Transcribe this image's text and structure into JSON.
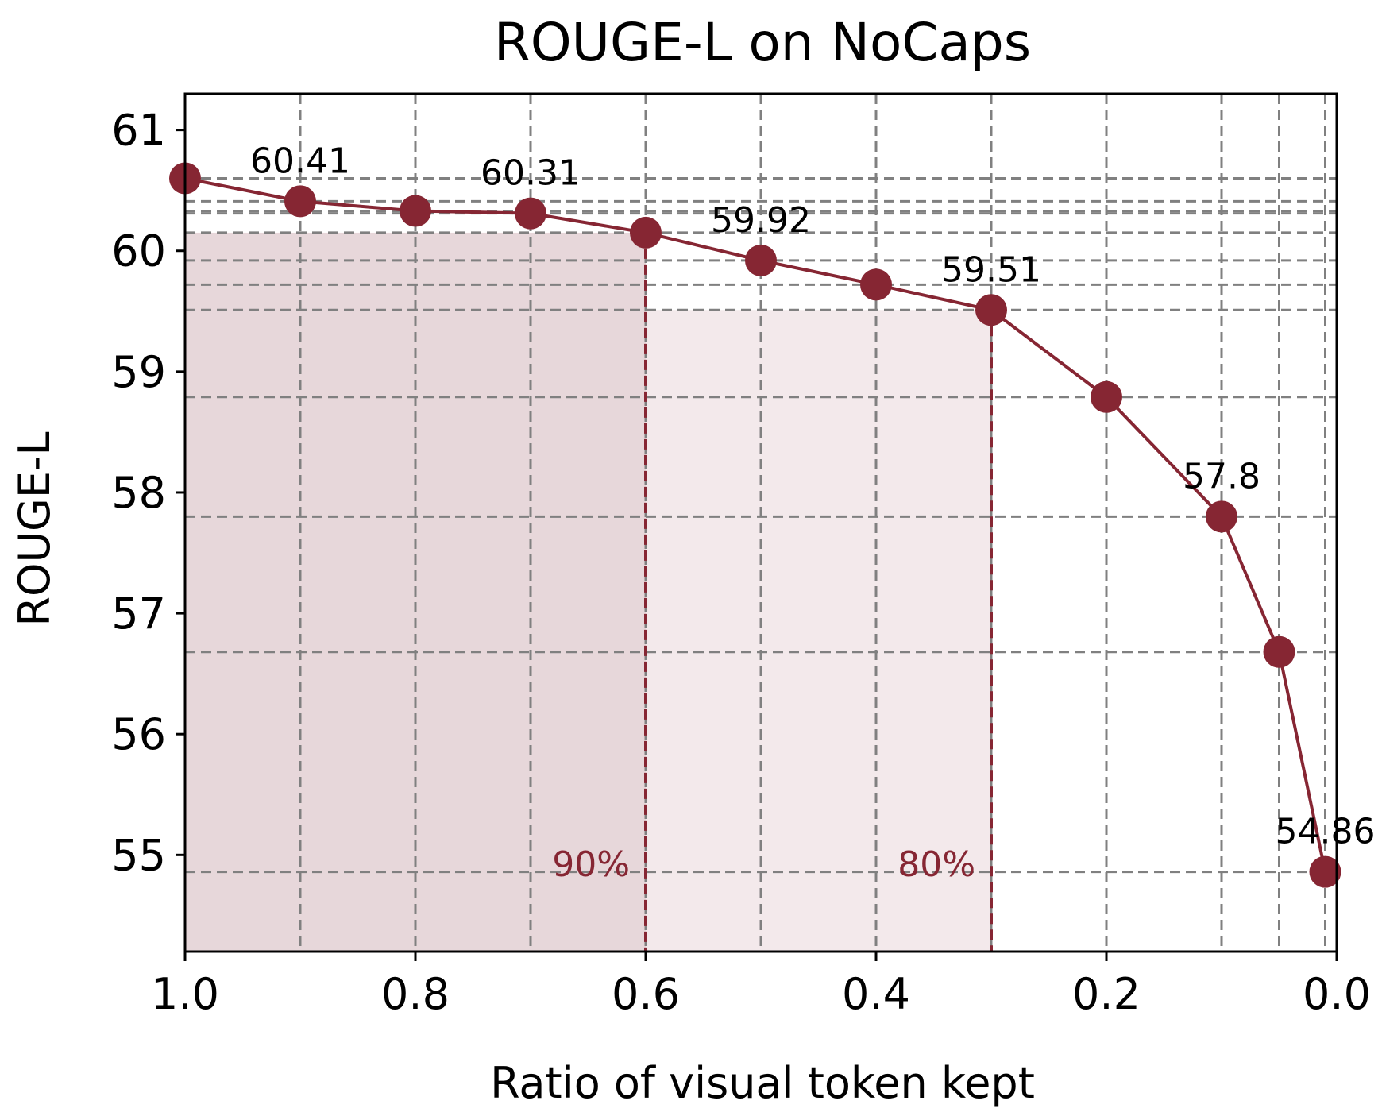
{
  "colors": {
    "series": "#862633",
    "grid": "#808080",
    "band_90": "#e7d7da",
    "band_80": "#f3e9eb"
  },
  "chart_data": {
    "type": "line",
    "title": "ROUGE-L on NoCaps",
    "xlabel": "Ratio of visual token kept",
    "ylabel": "ROUGE-L",
    "xlim": [
      1.0,
      0.0
    ],
    "ylim": [
      54.2,
      61.3
    ],
    "x_inverted": true,
    "xticks": [
      1.0,
      0.8,
      0.6,
      0.4,
      0.2,
      0.0
    ],
    "xtick_labels": [
      "1.0",
      "0.8",
      "0.6",
      "0.4",
      "0.2",
      "0.0"
    ],
    "yticks": [
      55,
      56,
      57,
      58,
      59,
      60,
      61
    ],
    "ytick_labels": [
      "55",
      "56",
      "57",
      "58",
      "59",
      "60",
      "61"
    ],
    "grid": true,
    "series": [
      {
        "x": [
          1.0,
          0.9,
          0.8,
          0.7,
          0.6,
          0.5,
          0.4,
          0.3,
          0.2,
          0.1,
          0.05,
          0.01
        ],
        "y": [
          60.6,
          60.41,
          60.33,
          60.31,
          60.15,
          59.92,
          59.72,
          59.51,
          58.79,
          57.8,
          56.68,
          54.86
        ]
      }
    ],
    "data_labels": [
      {
        "x": 0.9,
        "y": 60.41,
        "text": "60.41"
      },
      {
        "x": 0.7,
        "y": 60.31,
        "text": "60.31"
      },
      {
        "x": 0.5,
        "y": 59.92,
        "text": "59.92"
      },
      {
        "x": 0.3,
        "y": 59.51,
        "text": "59.51"
      },
      {
        "x": 0.1,
        "y": 57.8,
        "text": "57.8"
      },
      {
        "x": 0.01,
        "y": 54.86,
        "text": "54.86"
      }
    ],
    "shaded_regions": [
      {
        "x_from": 1.0,
        "x_to": 0.6,
        "y_top": 60.15,
        "label": "90%",
        "color_key": "band_90"
      },
      {
        "x_from": 0.6,
        "x_to": 0.3,
        "y_top": 59.51,
        "label": "80%",
        "color_key": "band_80"
      }
    ]
  }
}
